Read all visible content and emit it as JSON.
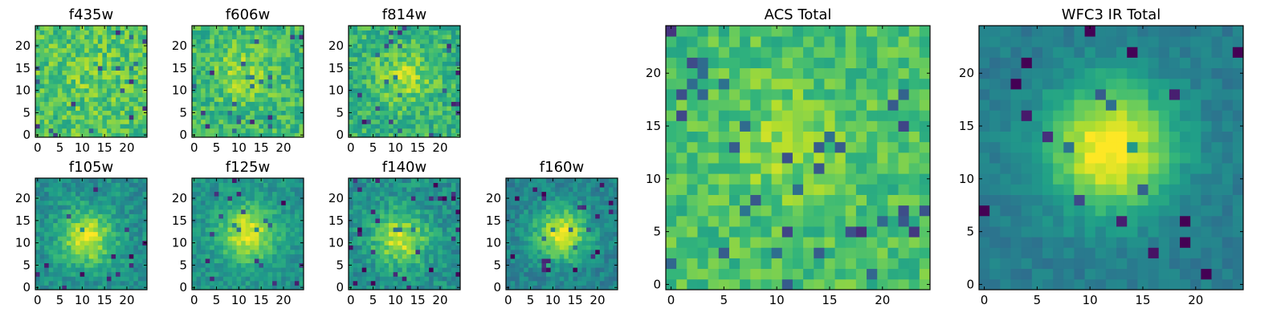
{
  "figure": {
    "background": "#ffffff",
    "colormap": "viridis"
  },
  "chart_data": [
    {
      "id": "f435w",
      "type": "heatmap",
      "title": "f435w",
      "grid_size": 25,
      "xlim": [
        0,
        24
      ],
      "ylim": [
        0,
        24
      ],
      "xticks": [
        0,
        5,
        10,
        15,
        20
      ],
      "yticks": [
        0,
        5,
        10,
        15,
        20
      ],
      "source_peak_xy": [
        12,
        12
      ],
      "source_strength": 0.05,
      "noise_level": 0.32,
      "background_level": 0.72
    },
    {
      "id": "f606w",
      "type": "heatmap",
      "title": "f606w",
      "grid_size": 25,
      "xlim": [
        0,
        24
      ],
      "ylim": [
        0,
        24
      ],
      "xticks": [
        0,
        5,
        10,
        15,
        20
      ],
      "yticks": [
        0,
        5,
        10,
        15,
        20
      ],
      "source_peak_xy": [
        11,
        14
      ],
      "source_strength": 0.15,
      "noise_level": 0.3,
      "background_level": 0.68
    },
    {
      "id": "f814w",
      "type": "heatmap",
      "title": "f814w",
      "grid_size": 25,
      "xlim": [
        0,
        24
      ],
      "ylim": [
        0,
        24
      ],
      "xticks": [
        0,
        5,
        10,
        15,
        20
      ],
      "yticks": [
        0,
        5,
        10,
        15,
        20
      ],
      "source_peak_xy": [
        12,
        13
      ],
      "source_strength": 0.2,
      "noise_level": 0.3,
      "background_level": 0.65
    },
    {
      "id": "f105w",
      "type": "heatmap",
      "title": "f105w",
      "grid_size": 25,
      "xlim": [
        0,
        24
      ],
      "ylim": [
        0,
        24
      ],
      "xticks": [
        0,
        5,
        10,
        15,
        20
      ],
      "yticks": [
        0,
        5,
        10,
        15,
        20
      ],
      "source_peak_xy": [
        11,
        11
      ],
      "source_strength": 0.45,
      "noise_level": 0.22,
      "background_level": 0.5
    },
    {
      "id": "f125w",
      "type": "heatmap",
      "title": "f125w",
      "grid_size": 25,
      "xlim": [
        0,
        24
      ],
      "ylim": [
        0,
        24
      ],
      "xticks": [
        0,
        5,
        10,
        15,
        20
      ],
      "yticks": [
        0,
        5,
        10,
        15,
        20
      ],
      "source_peak_xy": [
        12,
        12
      ],
      "source_strength": 0.45,
      "noise_level": 0.2,
      "background_level": 0.52
    },
    {
      "id": "f140w",
      "type": "heatmap",
      "title": "f140w",
      "grid_size": 25,
      "xlim": [
        0,
        24
      ],
      "ylim": [
        0,
        24
      ],
      "xticks": [
        0,
        5,
        10,
        15,
        20
      ],
      "yticks": [
        0,
        5,
        10,
        15,
        20
      ],
      "source_peak_xy": [
        11,
        11
      ],
      "source_strength": 0.42,
      "noise_level": 0.24,
      "background_level": 0.5
    },
    {
      "id": "f160w",
      "type": "heatmap",
      "title": "f160w",
      "grid_size": 25,
      "xlim": [
        0,
        24
      ],
      "ylim": [
        0,
        24
      ],
      "xticks": [
        0,
        5,
        10,
        15,
        20
      ],
      "yticks": [
        0,
        5,
        10,
        15,
        20
      ],
      "source_peak_xy": [
        12,
        12
      ],
      "source_strength": 0.5,
      "noise_level": 0.2,
      "background_level": 0.45
    },
    {
      "id": "acs-total",
      "type": "heatmap",
      "title": "ACS Total",
      "grid_size": 25,
      "xlim": [
        0,
        24
      ],
      "ylim": [
        0,
        24
      ],
      "xticks": [
        0,
        5,
        10,
        15,
        20
      ],
      "yticks": [
        0,
        5,
        10,
        15,
        20
      ],
      "source_peak_xy": [
        11,
        13
      ],
      "source_strength": 0.12,
      "noise_level": 0.25,
      "background_level": 0.7
    },
    {
      "id": "wfc3-ir-total",
      "type": "heatmap",
      "title": "WFC3 IR Total",
      "grid_size": 25,
      "xlim": [
        0,
        24
      ],
      "ylim": [
        0,
        24
      ],
      "xticks": [
        0,
        5,
        10,
        15,
        20
      ],
      "yticks": [
        0,
        5,
        10,
        15,
        20
      ],
      "source_peak_xy": [
        12,
        13
      ],
      "source_strength": 0.62,
      "noise_level": 0.12,
      "background_level": 0.42
    }
  ]
}
